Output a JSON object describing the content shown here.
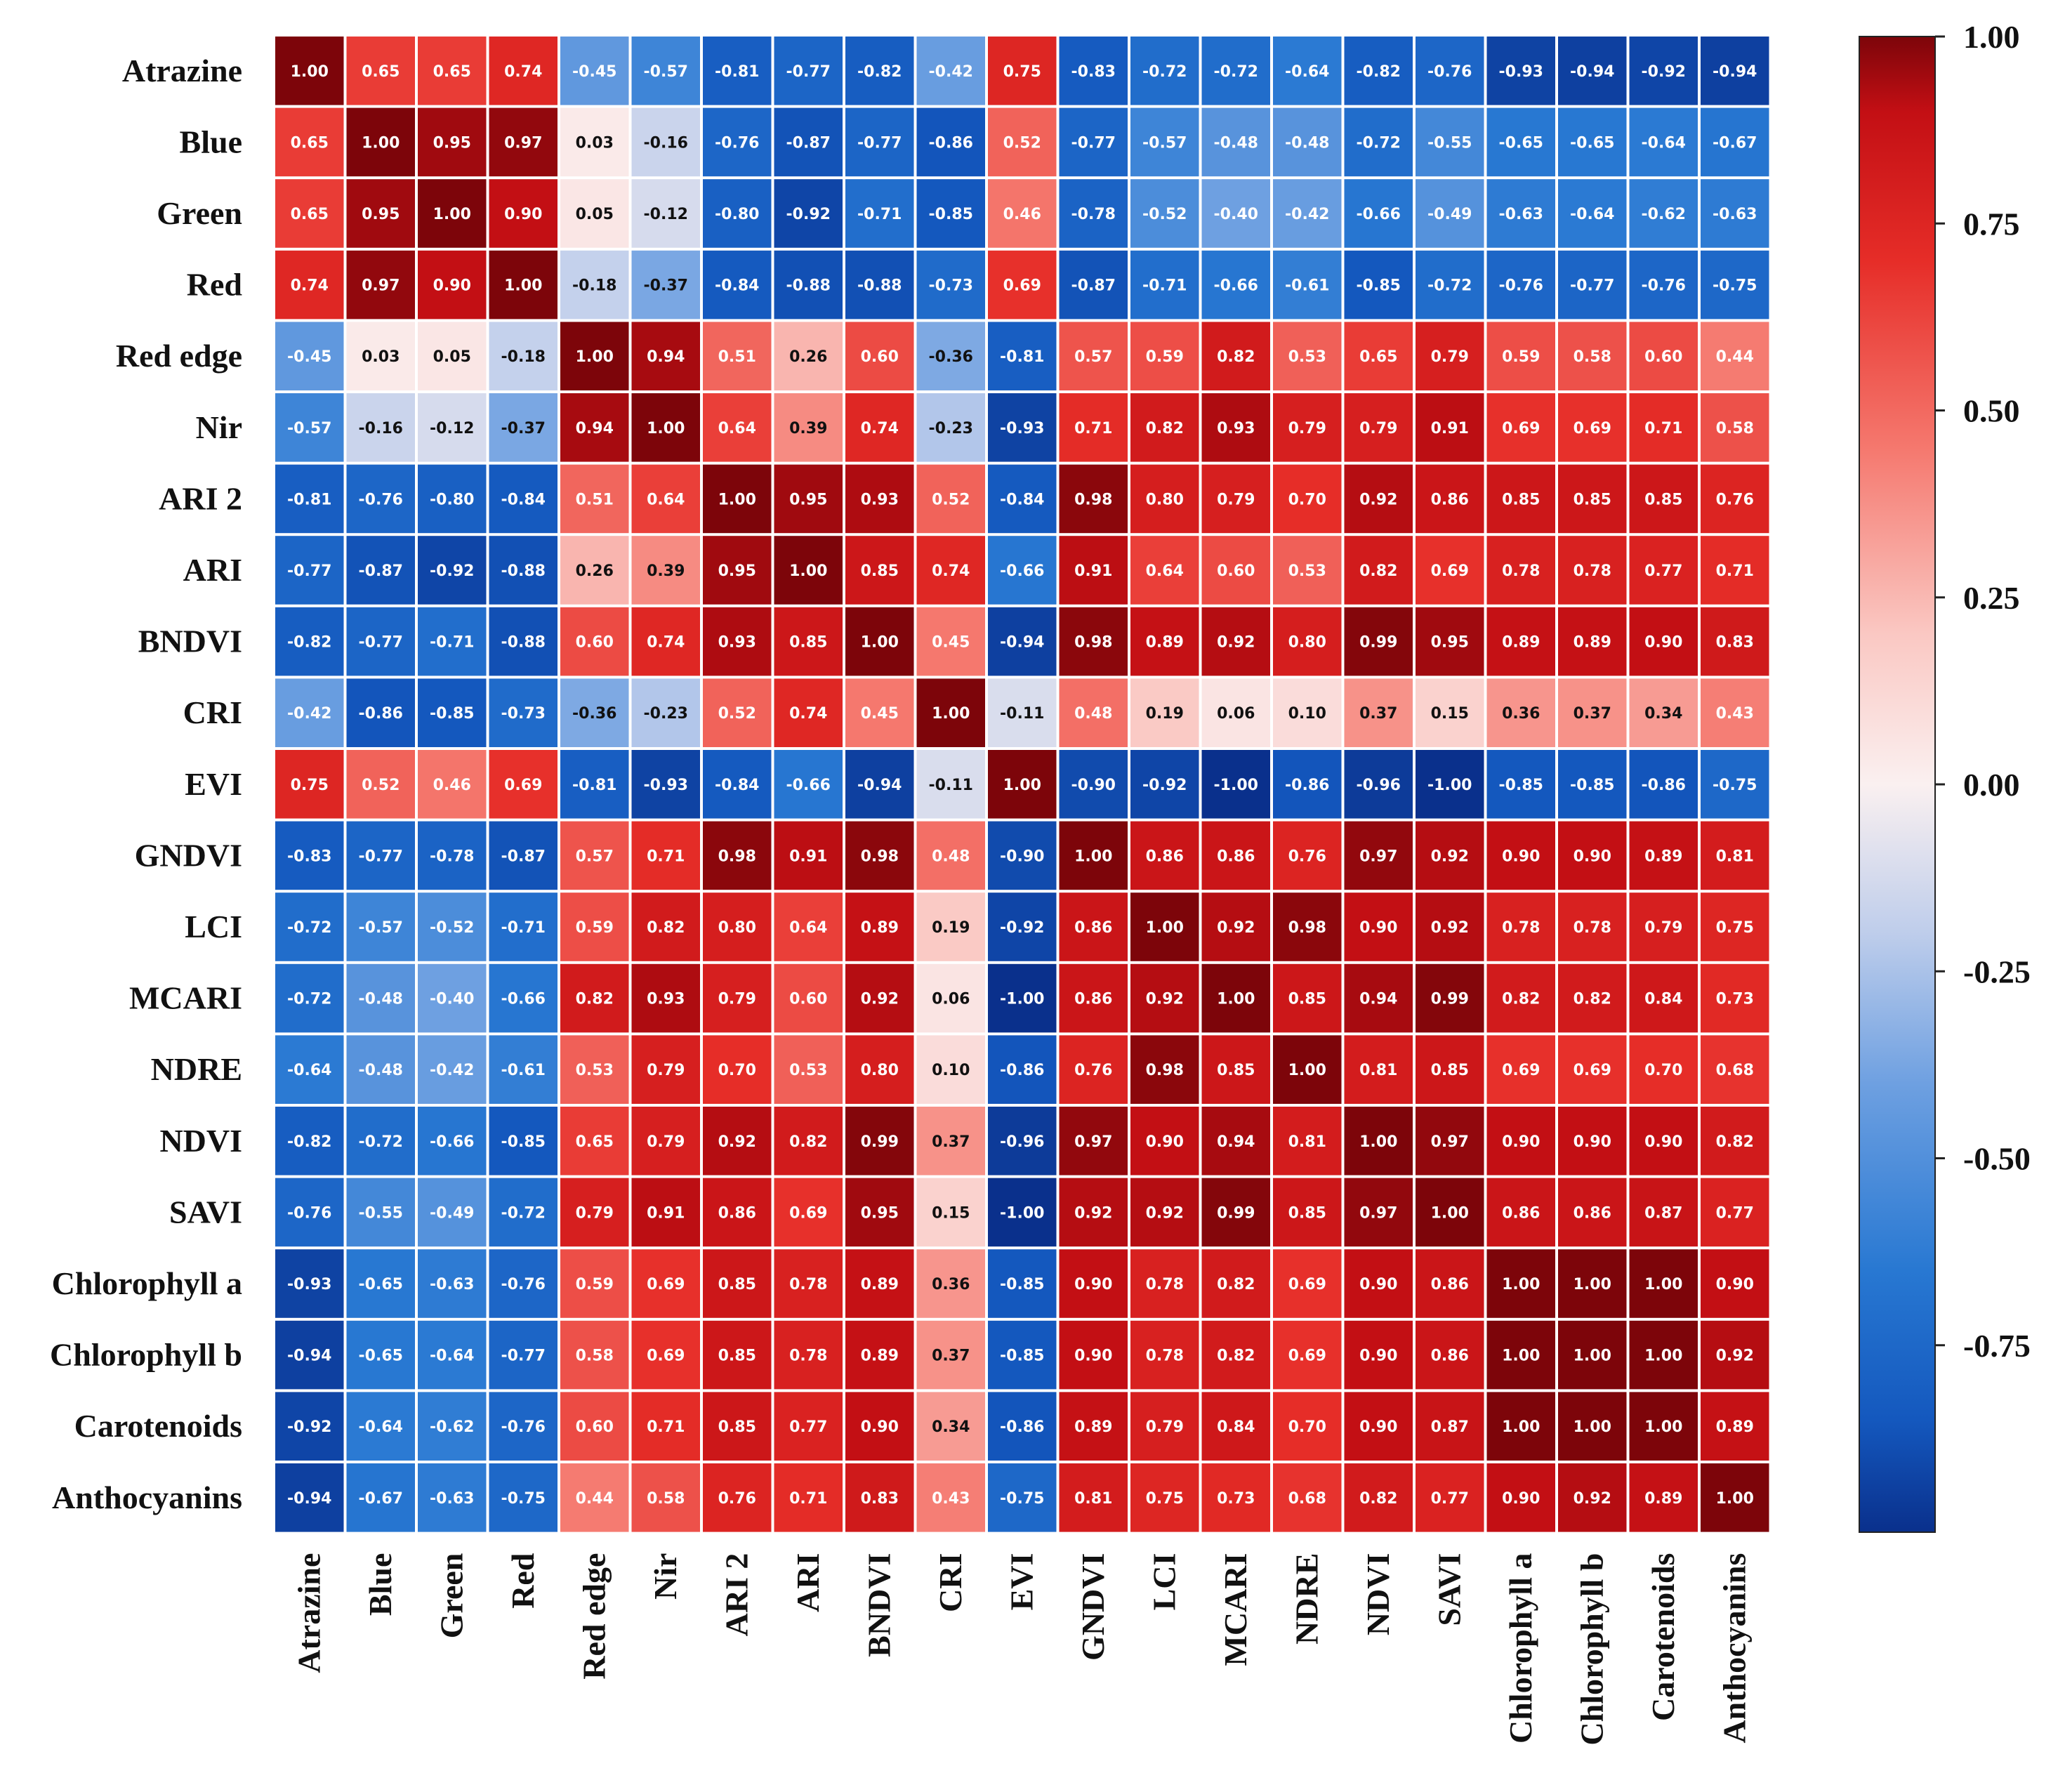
{
  "chart_data": {
    "type": "heatmap",
    "title": "",
    "labels": [
      "Atrazine",
      "Blue",
      "Green",
      "Red",
      "Red edge",
      "Nir",
      "ARI 2",
      "ARI",
      "BNDVI",
      "CRI",
      "EVI",
      "GNDVI",
      "LCI",
      "MCARI",
      "NDRE",
      "NDVI",
      "SAVI",
      "Chlorophyll a",
      "Chlorophyll b",
      "Carotenoids",
      "Anthocyanins"
    ],
    "matrix": [
      [
        1.0,
        0.65,
        0.65,
        0.74,
        -0.45,
        -0.57,
        -0.81,
        -0.77,
        -0.82,
        -0.42,
        0.75,
        -0.83,
        -0.72,
        -0.72,
        -0.64,
        -0.82,
        -0.76,
        -0.93,
        -0.94,
        -0.92,
        -0.94
      ],
      [
        0.65,
        1.0,
        0.95,
        0.97,
        0.03,
        -0.16,
        -0.76,
        -0.87,
        -0.77,
        -0.86,
        0.52,
        -0.77,
        -0.57,
        -0.48,
        -0.48,
        -0.72,
        -0.55,
        -0.65,
        -0.65,
        -0.64,
        -0.67
      ],
      [
        0.65,
        0.95,
        1.0,
        0.9,
        0.05,
        -0.12,
        -0.8,
        -0.92,
        -0.71,
        -0.85,
        0.46,
        -0.78,
        -0.52,
        -0.4,
        -0.42,
        -0.66,
        -0.49,
        -0.63,
        -0.64,
        -0.62,
        -0.63
      ],
      [
        0.74,
        0.97,
        0.9,
        1.0,
        -0.18,
        -0.37,
        -0.84,
        -0.88,
        -0.88,
        -0.73,
        0.69,
        -0.87,
        -0.71,
        -0.66,
        -0.61,
        -0.85,
        -0.72,
        -0.76,
        -0.77,
        -0.76,
        -0.75
      ],
      [
        -0.45,
        0.03,
        0.05,
        -0.18,
        1.0,
        0.94,
        0.51,
        0.26,
        0.6,
        -0.36,
        -0.81,
        0.57,
        0.59,
        0.82,
        0.53,
        0.65,
        0.79,
        0.59,
        0.58,
        0.6,
        0.44
      ],
      [
        -0.57,
        -0.16,
        -0.12,
        -0.37,
        0.94,
        1.0,
        0.64,
        0.39,
        0.74,
        -0.23,
        -0.93,
        0.71,
        0.82,
        0.93,
        0.79,
        0.79,
        0.91,
        0.69,
        0.69,
        0.71,
        0.58
      ],
      [
        -0.81,
        -0.76,
        -0.8,
        -0.84,
        0.51,
        0.64,
        1.0,
        0.95,
        0.93,
        0.52,
        -0.84,
        0.98,
        0.8,
        0.79,
        0.7,
        0.92,
        0.86,
        0.85,
        0.85,
        0.85,
        0.76
      ],
      [
        -0.77,
        -0.87,
        -0.92,
        -0.88,
        0.26,
        0.39,
        0.95,
        1.0,
        0.85,
        0.74,
        -0.66,
        0.91,
        0.64,
        0.6,
        0.53,
        0.82,
        0.69,
        0.78,
        0.78,
        0.77,
        0.71
      ],
      [
        -0.82,
        -0.77,
        -0.71,
        -0.88,
        0.6,
        0.74,
        0.93,
        0.85,
        1.0,
        0.45,
        -0.94,
        0.98,
        0.89,
        0.92,
        0.8,
        0.99,
        0.95,
        0.89,
        0.89,
        0.9,
        0.83
      ],
      [
        -0.42,
        -0.86,
        -0.85,
        -0.73,
        -0.36,
        -0.23,
        0.52,
        0.74,
        0.45,
        1.0,
        -0.11,
        0.48,
        0.19,
        0.06,
        0.1,
        0.37,
        0.15,
        0.36,
        0.37,
        0.34,
        0.43
      ],
      [
        0.75,
        0.52,
        0.46,
        0.69,
        -0.81,
        -0.93,
        -0.84,
        -0.66,
        -0.94,
        -0.11,
        1.0,
        -0.9,
        -0.92,
        -1.0,
        -0.86,
        -0.96,
        -1.0,
        -0.85,
        -0.85,
        -0.86,
        -0.75
      ],
      [
        -0.83,
        -0.77,
        -0.78,
        -0.87,
        0.57,
        0.71,
        0.98,
        0.91,
        0.98,
        0.48,
        -0.9,
        1.0,
        0.86,
        0.86,
        0.76,
        0.97,
        0.92,
        0.9,
        0.9,
        0.89,
        0.81
      ],
      [
        -0.72,
        -0.57,
        -0.52,
        -0.71,
        0.59,
        0.82,
        0.8,
        0.64,
        0.89,
        0.19,
        -0.92,
        0.86,
        1.0,
        0.92,
        0.98,
        0.9,
        0.92,
        0.78,
        0.78,
        0.79,
        0.75
      ],
      [
        -0.72,
        -0.48,
        -0.4,
        -0.66,
        0.82,
        0.93,
        0.79,
        0.6,
        0.92,
        0.06,
        -1.0,
        0.86,
        0.92,
        1.0,
        0.85,
        0.94,
        0.99,
        0.82,
        0.82,
        0.84,
        0.73
      ],
      [
        -0.64,
        -0.48,
        -0.42,
        -0.61,
        0.53,
        0.79,
        0.7,
        0.53,
        0.8,
        0.1,
        -0.86,
        0.76,
        0.98,
        0.85,
        1.0,
        0.81,
        0.85,
        0.69,
        0.69,
        0.7,
        0.68
      ],
      [
        -0.82,
        -0.72,
        -0.66,
        -0.85,
        0.65,
        0.79,
        0.92,
        0.82,
        0.99,
        0.37,
        -0.96,
        0.97,
        0.9,
        0.94,
        0.81,
        1.0,
        0.97,
        0.9,
        0.9,
        0.9,
        0.82
      ],
      [
        -0.76,
        -0.55,
        -0.49,
        -0.72,
        0.79,
        0.91,
        0.86,
        0.69,
        0.95,
        0.15,
        -1.0,
        0.92,
        0.92,
        0.99,
        0.85,
        0.97,
        1.0,
        0.86,
        0.86,
        0.87,
        0.77
      ],
      [
        -0.93,
        -0.65,
        -0.63,
        -0.76,
        0.59,
        0.69,
        0.85,
        0.78,
        0.89,
        0.36,
        -0.85,
        0.9,
        0.78,
        0.82,
        0.69,
        0.9,
        0.86,
        1.0,
        1.0,
        1.0,
        0.9
      ],
      [
        -0.94,
        -0.65,
        -0.64,
        -0.77,
        0.58,
        0.69,
        0.85,
        0.78,
        0.89,
        0.37,
        -0.85,
        0.9,
        0.78,
        0.82,
        0.69,
        0.9,
        0.86,
        1.0,
        1.0,
        1.0,
        0.92
      ],
      [
        -0.92,
        -0.64,
        -0.62,
        -0.76,
        0.6,
        0.71,
        0.85,
        0.77,
        0.9,
        0.34,
        -0.86,
        0.89,
        0.79,
        0.84,
        0.7,
        0.9,
        0.87,
        1.0,
        1.0,
        1.0,
        0.89
      ],
      [
        -0.94,
        -0.67,
        -0.63,
        -0.75,
        0.44,
        0.58,
        0.76,
        0.71,
        0.83,
        0.43,
        -0.75,
        0.81,
        0.75,
        0.73,
        0.68,
        0.82,
        0.77,
        0.9,
        0.92,
        0.89,
        1.0
      ]
    ],
    "colorbar": {
      "ticks": [
        "1.00",
        "0.75",
        "0.50",
        "0.25",
        "0.00",
        "-0.25",
        "-0.50",
        "-0.75"
      ],
      "tick_values": [
        1.0,
        0.75,
        0.5,
        0.25,
        0.0,
        -0.25,
        -0.5,
        -0.75
      ],
      "range": [
        -1.0,
        1.0
      ],
      "colormap": "blue-white-red",
      "color_low": "#08306b",
      "color_mid": "#fcf0ef",
      "color_high": "#67000d"
    },
    "value_format": "0.00"
  }
}
